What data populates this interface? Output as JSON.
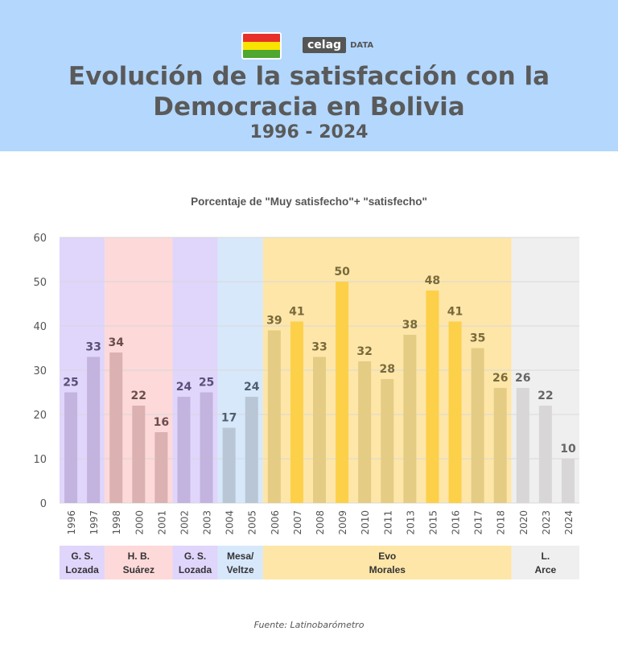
{
  "header": {
    "title_line1": "Evolución de la satisfacción con la",
    "title_line2": "Democracia en Bolivia",
    "years": "1996 - 2024",
    "logo_text": "celag",
    "logo_suffix": "DATA"
  },
  "colors": {
    "header_bg": "#b3d7fd",
    "flag": [
      "#e7302a",
      "#f9e300",
      "#4ea72e"
    ]
  },
  "chart_data": {
    "type": "bar",
    "title": "Porcentaje de \"Muy satisfecho\"+ \"satisfecho\"",
    "xlabel": "",
    "ylabel": "",
    "ylim": [
      0,
      60
    ],
    "yticks": [
      0,
      10,
      20,
      30,
      40,
      50,
      60
    ],
    "grid": true,
    "categories": [
      "1996",
      "1997",
      "1998",
      "2000",
      "2001",
      "2002",
      "2003",
      "2004",
      "2005",
      "2006",
      "2007",
      "2008",
      "2009",
      "2010",
      "2011",
      "2013",
      "2015",
      "2016",
      "2017",
      "2018",
      "2020",
      "2023",
      "2024"
    ],
    "values": [
      25,
      33,
      34,
      22,
      16,
      24,
      25,
      17,
      24,
      39,
      41,
      33,
      50,
      32,
      28,
      38,
      48,
      41,
      35,
      26,
      26,
      22,
      10
    ],
    "highlighted": [
      "2007",
      "2009",
      "2015",
      "2016"
    ],
    "periods": [
      {
        "label1": "G. S.",
        "label2": "Lozada",
        "count": 2,
        "band": "#e0d5fb",
        "bar": "#c3b3df",
        "text": "#5b5078"
      },
      {
        "label1": "H. B.",
        "label2": "Suárez",
        "count": 3,
        "band": "#fdd9d9",
        "bar": "#dbb1b1",
        "text": "#6b4d4d"
      },
      {
        "label1": "G. S.",
        "label2": "Lozada",
        "count": 2,
        "band": "#e0d5fb",
        "bar": "#c3b3df",
        "text": "#5b5078"
      },
      {
        "label1": "Mesa/",
        "label2": "Veltze",
        "count": 2,
        "band": "#d7e8fb",
        "bar": "#b8c6d6",
        "text": "#4f5e70"
      },
      {
        "label1": "Evo",
        "label2": "Morales",
        "count": 11,
        "band": "#fde6a8",
        "bar": "#e4cc85",
        "text": "#7a6a3a",
        "highlight_bar": "#fdd04a"
      },
      {
        "label1": "L.",
        "label2": "Arce",
        "count": 3,
        "band": "#efefef",
        "bar": "#d8d6d6",
        "text": "#666666"
      }
    ]
  },
  "source": "Fuente: Latinobarómetro"
}
